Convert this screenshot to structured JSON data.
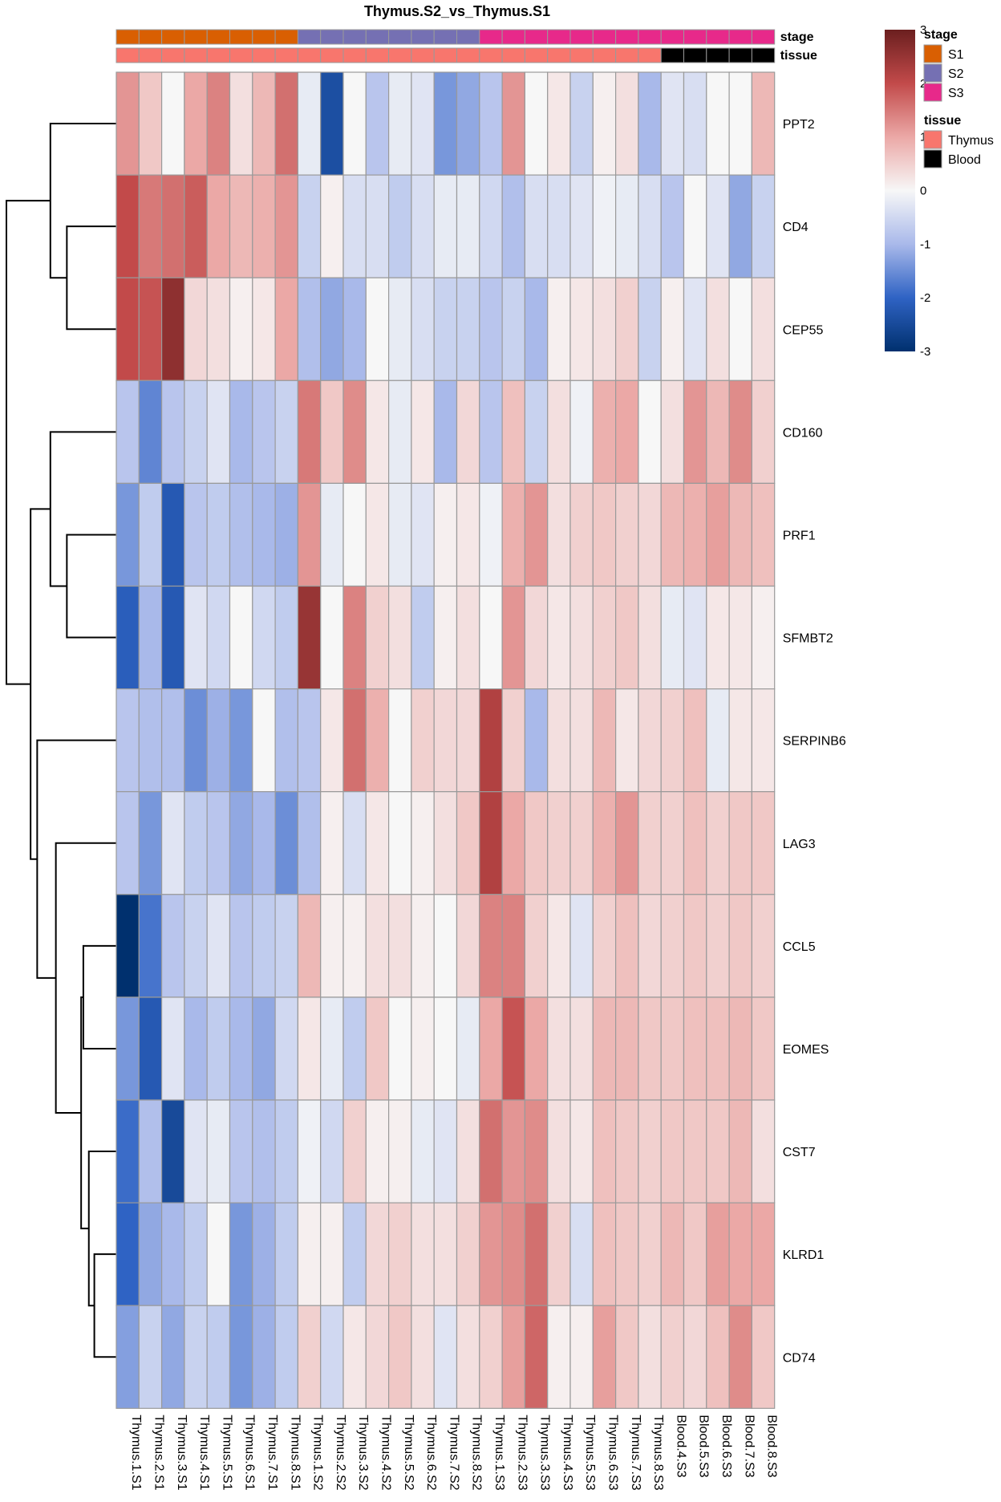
{
  "chart_data": {
    "type": "heatmap",
    "title": "Thymus.S2_vs_Thymus.S1",
    "rows": [
      "PPT2",
      "CD4",
      "CEP55",
      "CD160",
      "PRF1",
      "SFMBT2",
      "SERPINB6",
      "LAG3",
      "CCL5",
      "EOMES",
      "CST7",
      "KLRD1",
      "CD74"
    ],
    "columns": [
      "Thymus.1.S1",
      "Thymus.2.S1",
      "Thymus.3.S1",
      "Thymus.4.S1",
      "Thymus.5.S1",
      "Thymus.6.S1",
      "Thymus.7.S1",
      "Thymus.8.S1",
      "Thymus.1.S2",
      "Thymus.2.S2",
      "Thymus.3.S2",
      "Thymus.4.S2",
      "Thymus.5.S2",
      "Thymus.6.S2",
      "Thymus.7.S2",
      "Thymus.8.S2",
      "Thymus.1.S3",
      "Thymus.2.S3",
      "Thymus.3.S3",
      "Thymus.4.S3",
      "Thymus.5.S3",
      "Thymus.6.S3",
      "Thymus.7.S3",
      "Thymus.8.S3",
      "Blood.4.S3",
      "Blood.5.S3",
      "Blood.6.S3",
      "Blood.7.S3",
      "Blood.8.S3"
    ],
    "values": [
      [
        1.2,
        0.6,
        0.0,
        1.0,
        1.4,
        0.3,
        0.8,
        1.6,
        -0.2,
        -2.4,
        0.0,
        -0.8,
        -0.2,
        -0.3,
        -1.4,
        -1.2,
        -0.8,
        1.2,
        0.0,
        0.2,
        -0.6,
        0.1,
        0.3,
        -1.0,
        -0.3,
        -0.4,
        0.0,
        0.0,
        0.8
      ],
      [
        2.0,
        1.5,
        1.6,
        1.8,
        1.0,
        0.8,
        0.9,
        1.2,
        -0.6,
        0.1,
        -0.4,
        -0.4,
        -0.7,
        -0.4,
        -0.2,
        -0.2,
        -0.5,
        -0.9,
        -0.4,
        -0.4,
        -0.3,
        -0.1,
        -0.2,
        -0.4,
        -0.8,
        0.0,
        -0.3,
        -1.2,
        -0.6
      ],
      [
        2.0,
        1.9,
        2.6,
        0.4,
        0.3,
        0.1,
        0.2,
        1.0,
        -0.9,
        -1.2,
        -1.0,
        0.0,
        -0.2,
        -0.4,
        -0.6,
        -0.6,
        -0.8,
        -0.6,
        -1.0,
        0.1,
        0.2,
        0.3,
        0.5,
        -0.6,
        0.1,
        -0.3,
        0.3,
        0.0,
        0.3
      ],
      [
        -0.8,
        -1.6,
        -0.8,
        -0.6,
        -0.3,
        -1.0,
        -0.8,
        -0.6,
        1.5,
        0.6,
        1.3,
        0.2,
        -0.2,
        0.2,
        -1.0,
        0.4,
        -0.8,
        0.7,
        -0.6,
        0.3,
        -0.1,
        0.9,
        1.0,
        0.0,
        0.3,
        1.2,
        0.8,
        1.3,
        0.5
      ],
      [
        -1.4,
        -0.7,
        -2.2,
        -0.8,
        -0.7,
        -0.9,
        -1.0,
        -1.1,
        1.2,
        -0.2,
        0.0,
        0.2,
        -0.2,
        -0.3,
        0.1,
        0.2,
        -0.1,
        0.9,
        1.2,
        0.3,
        0.5,
        0.6,
        0.5,
        0.4,
        0.8,
        0.9,
        1.1,
        0.8,
        0.7
      ],
      [
        -2.1,
        -1.0,
        -2.2,
        -0.3,
        -0.5,
        0.0,
        -0.5,
        -0.7,
        2.5,
        0.0,
        1.4,
        0.5,
        0.3,
        -0.7,
        0.1,
        0.3,
        0.0,
        1.2,
        0.4,
        0.2,
        0.3,
        0.5,
        0.6,
        0.3,
        -0.2,
        -0.3,
        0.2,
        0.2,
        0.1
      ],
      [
        -0.8,
        -0.9,
        -0.9,
        -1.5,
        -1.1,
        -1.4,
        0.0,
        -0.9,
        -0.8,
        0.2,
        1.6,
        0.9,
        0.0,
        0.5,
        0.4,
        0.4,
        2.2,
        0.5,
        -1.0,
        0.3,
        0.3,
        0.8,
        0.2,
        0.4,
        0.5,
        0.7,
        -0.2,
        0.2,
        0.2
      ],
      [
        -0.8,
        -1.4,
        -0.3,
        -0.7,
        -0.8,
        -1.2,
        -1.0,
        -1.5,
        -0.9,
        0.1,
        -0.4,
        0.2,
        0.0,
        0.1,
        0.3,
        0.6,
        2.2,
        1.0,
        0.6,
        0.5,
        0.5,
        0.9,
        1.2,
        0.5,
        0.5,
        0.7,
        0.5,
        0.6,
        0.6
      ],
      [
        -3.0,
        -1.8,
        -0.8,
        -0.6,
        -0.3,
        -0.8,
        -0.7,
        -0.6,
        0.8,
        0.1,
        0.1,
        0.3,
        0.3,
        0.1,
        0.0,
        0.4,
        1.4,
        1.4,
        0.5,
        0.2,
        -0.3,
        0.5,
        0.7,
        0.4,
        0.5,
        0.6,
        0.5,
        0.6,
        0.5
      ],
      [
        -1.4,
        -2.2,
        -0.3,
        -1.0,
        -0.7,
        -1.0,
        -1.2,
        -0.5,
        0.2,
        -0.2,
        -0.7,
        0.6,
        0.0,
        0.1,
        0.0,
        -0.2,
        1.0,
        1.9,
        1.0,
        0.3,
        0.3,
        0.8,
        0.8,
        0.6,
        0.6,
        0.7,
        0.7,
        0.8,
        0.6
      ],
      [
        -1.9,
        -0.9,
        -2.5,
        -0.3,
        -0.2,
        -0.8,
        -0.9,
        -0.7,
        -0.1,
        -0.5,
        0.5,
        0.1,
        0.1,
        -0.2,
        -0.3,
        0.3,
        1.6,
        1.2,
        1.3,
        0.3,
        0.2,
        0.7,
        0.6,
        0.5,
        0.6,
        0.6,
        0.6,
        0.8,
        0.3
      ],
      [
        -2.0,
        -1.2,
        -1.0,
        -0.7,
        0.0,
        -1.4,
        -1.1,
        -0.7,
        0.1,
        0.1,
        -0.7,
        0.4,
        0.5,
        0.3,
        0.3,
        0.5,
        1.2,
        1.3,
        1.6,
        0.5,
        -0.4,
        0.7,
        0.6,
        0.5,
        0.8,
        0.6,
        1.1,
        1.0,
        1.0
      ],
      [
        -1.3,
        -0.6,
        -1.2,
        -0.6,
        -0.7,
        -1.4,
        -1.1,
        -0.7,
        0.5,
        -0.5,
        0.2,
        0.4,
        0.6,
        0.3,
        -0.3,
        0.3,
        0.5,
        1.1,
        1.7,
        0.1,
        0.1,
        1.1,
        0.6,
        0.3,
        0.5,
        0.4,
        0.7,
        1.3,
        0.6
      ]
    ],
    "annotations": {
      "stage": [
        "S1",
        "S1",
        "S1",
        "S1",
        "S1",
        "S1",
        "S1",
        "S1",
        "S2",
        "S2",
        "S2",
        "S2",
        "S2",
        "S2",
        "S2",
        "S2",
        "S3",
        "S3",
        "S3",
        "S3",
        "S3",
        "S3",
        "S3",
        "S3",
        "S3",
        "S3",
        "S3",
        "S3",
        "S3"
      ],
      "tissue": [
        "Thymus",
        "Thymus",
        "Thymus",
        "Thymus",
        "Thymus",
        "Thymus",
        "Thymus",
        "Thymus",
        "Thymus",
        "Thymus",
        "Thymus",
        "Thymus",
        "Thymus",
        "Thymus",
        "Thymus",
        "Thymus",
        "Thymus",
        "Thymus",
        "Thymus",
        "Thymus",
        "Thymus",
        "Thymus",
        "Thymus",
        "Thymus",
        "Blood",
        "Blood",
        "Blood",
        "Blood",
        "Blood"
      ]
    },
    "annotation_labels": [
      "stage",
      "tissue"
    ],
    "annotation_colors": {
      "stage": {
        "S1": "#D95F02",
        "S2": "#7570B3",
        "S3": "#E7298A"
      },
      "tissue": {
        "Thymus": "#F8766D",
        "Blood": "#000000"
      }
    },
    "legend": {
      "stage": {
        "title": "stage",
        "entries": [
          "S1",
          "S2",
          "S3"
        ]
      },
      "tissue": {
        "title": "tissue",
        "entries": [
          "Thymus",
          "Blood"
        ]
      }
    },
    "color_scale": {
      "colors": [
        "#053061",
        "#2166AC",
        "#4393C3",
        "#92C5DE",
        "#F7F7F7",
        "#F4A582",
        "#D6604D",
        "#B2182B",
        "#67001F"
      ],
      "heatmap_colors": [
        "#00306E",
        "#2F63C4",
        "#A9B9EA",
        "#F7F7F7",
        "#EBA8A6",
        "#C24A4A",
        "#6B1F1F"
      ],
      "stops": [
        -3,
        -2,
        -1,
        0,
        1,
        2,
        3
      ],
      "ticks": [
        3,
        2,
        1,
        0,
        -1,
        -2,
        -3
      ]
    },
    "row_dendrogram": {
      "merges": [
        {
          "a": "CD4",
          "b": "CEP55",
          "height": 0.45
        },
        {
          "a": "PPT2",
          "b": "CD4+CEP55",
          "height": 0.6
        },
        {
          "a": "PRF1",
          "b": "SFMBT2",
          "height": 0.45
        },
        {
          "a": "CD160",
          "b": "PRF1+SFMBT2",
          "height": 0.6
        },
        {
          "a": "EOMES",
          "b": "CCL5",
          "height": 0.3
        },
        {
          "a": "KLRD1",
          "b": "CD74",
          "height": 0.2
        },
        {
          "a": "CST7",
          "b": "KLRD1+CD74",
          "height": 0.25
        },
        {
          "a": "EOMES+CCL5",
          "b": "CST7+KLRD1+CD74",
          "height": 0.32
        },
        {
          "a": "LAG3",
          "b": "rest",
          "height": 0.55
        },
        {
          "a": "SERPINB6",
          "b": "LAG3+rest",
          "height": 0.72
        },
        {
          "a": "CD160+PRF1+SFMBT2",
          "b": "SERPINB6+LAG3+rest",
          "height": 0.78
        },
        {
          "a": "PPT2+CD4+CEP55",
          "b": "all",
          "height": 1.0
        }
      ]
    }
  }
}
